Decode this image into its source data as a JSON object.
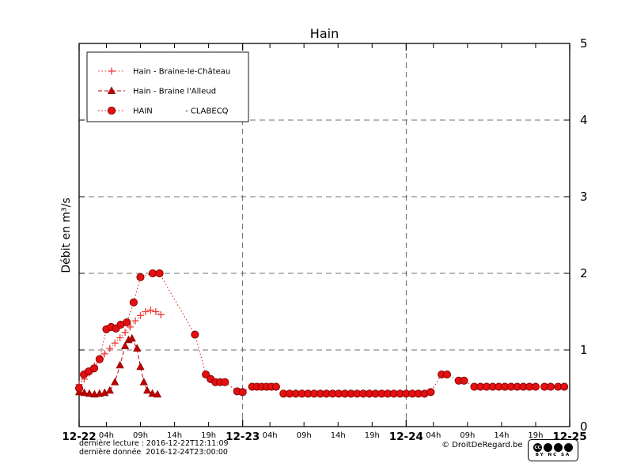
{
  "chart_data": {
    "type": "line",
    "title": "Hain",
    "ylabel": "Débit en m³/s",
    "ylim": [
      0,
      5
    ],
    "xlim_hours": [
      0,
      72
    ],
    "y_ticks": [
      0,
      1,
      2,
      3,
      4,
      5
    ],
    "x_major_ticks": [
      {
        "h": 0,
        "label": "12-22"
      },
      {
        "h": 24,
        "label": "12-23"
      },
      {
        "h": 48,
        "label": "12-24"
      },
      {
        "h": 72,
        "label": "12-25"
      }
    ],
    "x_minor_ticks": [
      {
        "h": 4,
        "label": "04h"
      },
      {
        "h": 9,
        "label": "09h"
      },
      {
        "h": 14,
        "label": "14h"
      },
      {
        "h": 19,
        "label": "19h"
      },
      {
        "h": 28,
        "label": "04h"
      },
      {
        "h": 33,
        "label": "09h"
      },
      {
        "h": 38,
        "label": "14h"
      },
      {
        "h": 43,
        "label": "19h"
      },
      {
        "h": 52,
        "label": "04h"
      },
      {
        "h": 57,
        "label": "09h"
      },
      {
        "h": 62,
        "label": "14h"
      },
      {
        "h": 67,
        "label": "19h"
      }
    ],
    "grid": {
      "h_lines": [
        1,
        2,
        3,
        4
      ],
      "v_lines": [
        24,
        48
      ]
    },
    "legend_position": "top-left",
    "series": [
      {
        "name": "Hain - Braine-le-Château",
        "marker": "plus",
        "color": "#ee3b3b",
        "line": "dotted",
        "points": [
          [
            0,
            0.55
          ],
          [
            0.75,
            0.62
          ],
          [
            1.5,
            0.7
          ],
          [
            2.25,
            0.79
          ],
          [
            3,
            0.88
          ],
          [
            3.75,
            0.95
          ],
          [
            4.5,
            1.02
          ],
          [
            5.25,
            1.09
          ],
          [
            6,
            1.16
          ],
          [
            6.75,
            1.23
          ],
          [
            7.5,
            1.3
          ],
          [
            8.25,
            1.38
          ],
          [
            9,
            1.45
          ],
          [
            9.75,
            1.5
          ],
          [
            10.5,
            1.52
          ],
          [
            11.25,
            1.5
          ],
          [
            12,
            1.46
          ]
        ]
      },
      {
        "name": "Hain - Braine l'Alleud",
        "marker": "triangle",
        "color": "#c00000",
        "line": "dashed",
        "points": [
          [
            0,
            0.45
          ],
          [
            0.75,
            0.44
          ],
          [
            1.5,
            0.43
          ],
          [
            2.25,
            0.42
          ],
          [
            3,
            0.43
          ],
          [
            3.75,
            0.44
          ],
          [
            4.5,
            0.47
          ],
          [
            5.25,
            0.58
          ],
          [
            6,
            0.8
          ],
          [
            6.75,
            1.05
          ],
          [
            7.25,
            1.13
          ],
          [
            7.75,
            1.15
          ],
          [
            8.5,
            1.02
          ],
          [
            9,
            0.78
          ],
          [
            9.5,
            0.58
          ],
          [
            10,
            0.47
          ],
          [
            10.75,
            0.43
          ],
          [
            11.5,
            0.42
          ]
        ]
      },
      {
        "name": "HAIN             - CLABECQ",
        "marker": "circle",
        "color": "#e60f0f",
        "line": "dotted",
        "points": [
          [
            0,
            0.5
          ],
          [
            0.7,
            0.68
          ],
          [
            1.4,
            0.72
          ],
          [
            2.2,
            0.76
          ],
          [
            3,
            0.88
          ],
          [
            4,
            1.27
          ],
          [
            4.7,
            1.3
          ],
          [
            5.4,
            1.28
          ],
          [
            6.1,
            1.33
          ],
          [
            7,
            1.36
          ],
          [
            8,
            1.62
          ],
          [
            9,
            1.95
          ],
          [
            10.8,
            2.0
          ],
          [
            11.8,
            2.0
          ],
          [
            17,
            1.2
          ],
          [
            18.6,
            0.68
          ],
          [
            19.3,
            0.62
          ],
          [
            20,
            0.58
          ],
          [
            20.7,
            0.58
          ],
          [
            21.4,
            0.58
          ],
          [
            23.2,
            0.46
          ],
          [
            24,
            0.45
          ],
          [
            25.4,
            0.52
          ],
          [
            26.1,
            0.52
          ],
          [
            26.8,
            0.52
          ],
          [
            27.5,
            0.52
          ],
          [
            28.2,
            0.52
          ],
          [
            28.9,
            0.52
          ],
          [
            30,
            0.43
          ],
          [
            30.9,
            0.43
          ],
          [
            31.8,
            0.43
          ],
          [
            32.7,
            0.43
          ],
          [
            33.6,
            0.43
          ],
          [
            34.5,
            0.43
          ],
          [
            35.4,
            0.43
          ],
          [
            36.3,
            0.43
          ],
          [
            37.2,
            0.43
          ],
          [
            38.1,
            0.43
          ],
          [
            39,
            0.43
          ],
          [
            39.9,
            0.43
          ],
          [
            40.8,
            0.43
          ],
          [
            41.7,
            0.43
          ],
          [
            42.6,
            0.43
          ],
          [
            43.5,
            0.43
          ],
          [
            44.4,
            0.43
          ],
          [
            45.3,
            0.43
          ],
          [
            46.2,
            0.43
          ],
          [
            47.1,
            0.43
          ],
          [
            48,
            0.43
          ],
          [
            48.9,
            0.43
          ],
          [
            49.8,
            0.43
          ],
          [
            50.7,
            0.43
          ],
          [
            51.6,
            0.45
          ],
          [
            53.2,
            0.68
          ],
          [
            54,
            0.68
          ],
          [
            55.7,
            0.6
          ],
          [
            56.5,
            0.6
          ],
          [
            58,
            0.52
          ],
          [
            58.9,
            0.52
          ],
          [
            59.8,
            0.52
          ],
          [
            60.7,
            0.52
          ],
          [
            61.6,
            0.52
          ],
          [
            62.5,
            0.52
          ],
          [
            63.4,
            0.52
          ],
          [
            64.3,
            0.52
          ],
          [
            65.2,
            0.52
          ],
          [
            66.1,
            0.52
          ],
          [
            67,
            0.52
          ],
          [
            68.3,
            0.52
          ],
          [
            69.2,
            0.52
          ],
          [
            70.3,
            0.52
          ],
          [
            71.2,
            0.52
          ]
        ]
      }
    ]
  },
  "footer": {
    "derniere_lecture": "dernière lecture : 2016-12-22T12:11:09",
    "derniere_donnee": "dernière donnée  2016-12-24T23:00:00",
    "copyright": "© DroitDeRegard.be",
    "license_badge": {
      "cc": "CC",
      "categories": "BY NC SA"
    }
  }
}
